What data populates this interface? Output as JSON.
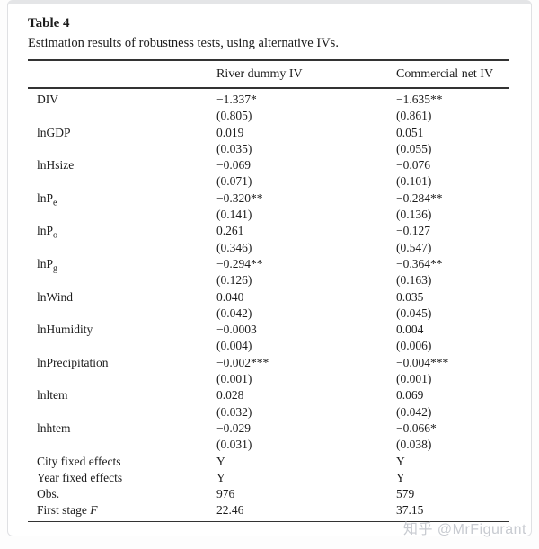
{
  "page": {
    "watermark": "知乎 @MrFigurant"
  },
  "table": {
    "label": "Table 4",
    "caption": "Estimation results of robustness tests, using alternative IVs.",
    "columns": [
      "River dummy IV",
      "Commercial net IV"
    ],
    "rows": [
      {
        "label": "DIV",
        "sub": "",
        "coef": [
          "−1.337*",
          "−1.635**"
        ],
        "se": [
          "(0.805)",
          "(0.861)"
        ]
      },
      {
        "label": "lnGDP",
        "sub": "",
        "coef": [
          "0.019",
          "0.051"
        ],
        "se": [
          "(0.035)",
          "(0.055)"
        ]
      },
      {
        "label": "lnHsize",
        "sub": "",
        "coef": [
          "−0.069",
          "−0.076"
        ],
        "se": [
          "(0.071)",
          "(0.101)"
        ]
      },
      {
        "label": "lnP",
        "sub": "e",
        "coef": [
          "−0.320**",
          "−0.284**"
        ],
        "se": [
          "(0.141)",
          "(0.136)"
        ]
      },
      {
        "label": "lnP",
        "sub": "o",
        "coef": [
          "0.261",
          "−0.127"
        ],
        "se": [
          "(0.346)",
          "(0.547)"
        ]
      },
      {
        "label": "lnP",
        "sub": "g",
        "coef": [
          "−0.294**",
          "−0.364**"
        ],
        "se": [
          "(0.126)",
          "(0.163)"
        ]
      },
      {
        "label": "lnWind",
        "sub": "",
        "coef": [
          "0.040",
          "0.035"
        ],
        "se": [
          "(0.042)",
          "(0.045)"
        ]
      },
      {
        "label": "lnHumidity",
        "sub": "",
        "coef": [
          "−0.0003",
          "0.004"
        ],
        "se": [
          "(0.004)",
          "(0.006)"
        ]
      },
      {
        "label": "lnPrecipitation",
        "sub": "",
        "coef": [
          "−0.002***",
          "−0.004***"
        ],
        "se": [
          "(0.001)",
          "(0.001)"
        ]
      },
      {
        "label": "lnltem",
        "sub": "",
        "coef": [
          "0.028",
          "0.069"
        ],
        "se": [
          "(0.032)",
          "(0.042)"
        ]
      },
      {
        "label": "lnhtem",
        "sub": "",
        "coef": [
          "−0.029",
          "−0.066*"
        ],
        "se": [
          "(0.031)",
          "(0.038)"
        ]
      }
    ],
    "summary_rows": [
      {
        "label": "City fixed effects",
        "label_italic": "",
        "values": [
          "Y",
          "Y"
        ]
      },
      {
        "label": "Year fixed effects",
        "label_italic": "",
        "values": [
          "Y",
          "Y"
        ]
      },
      {
        "label": "Obs.",
        "label_italic": "",
        "values": [
          "976",
          "579"
        ]
      },
      {
        "label": "First stage ",
        "label_italic": "F",
        "values": [
          "22.46",
          "37.15"
        ]
      }
    ]
  }
}
